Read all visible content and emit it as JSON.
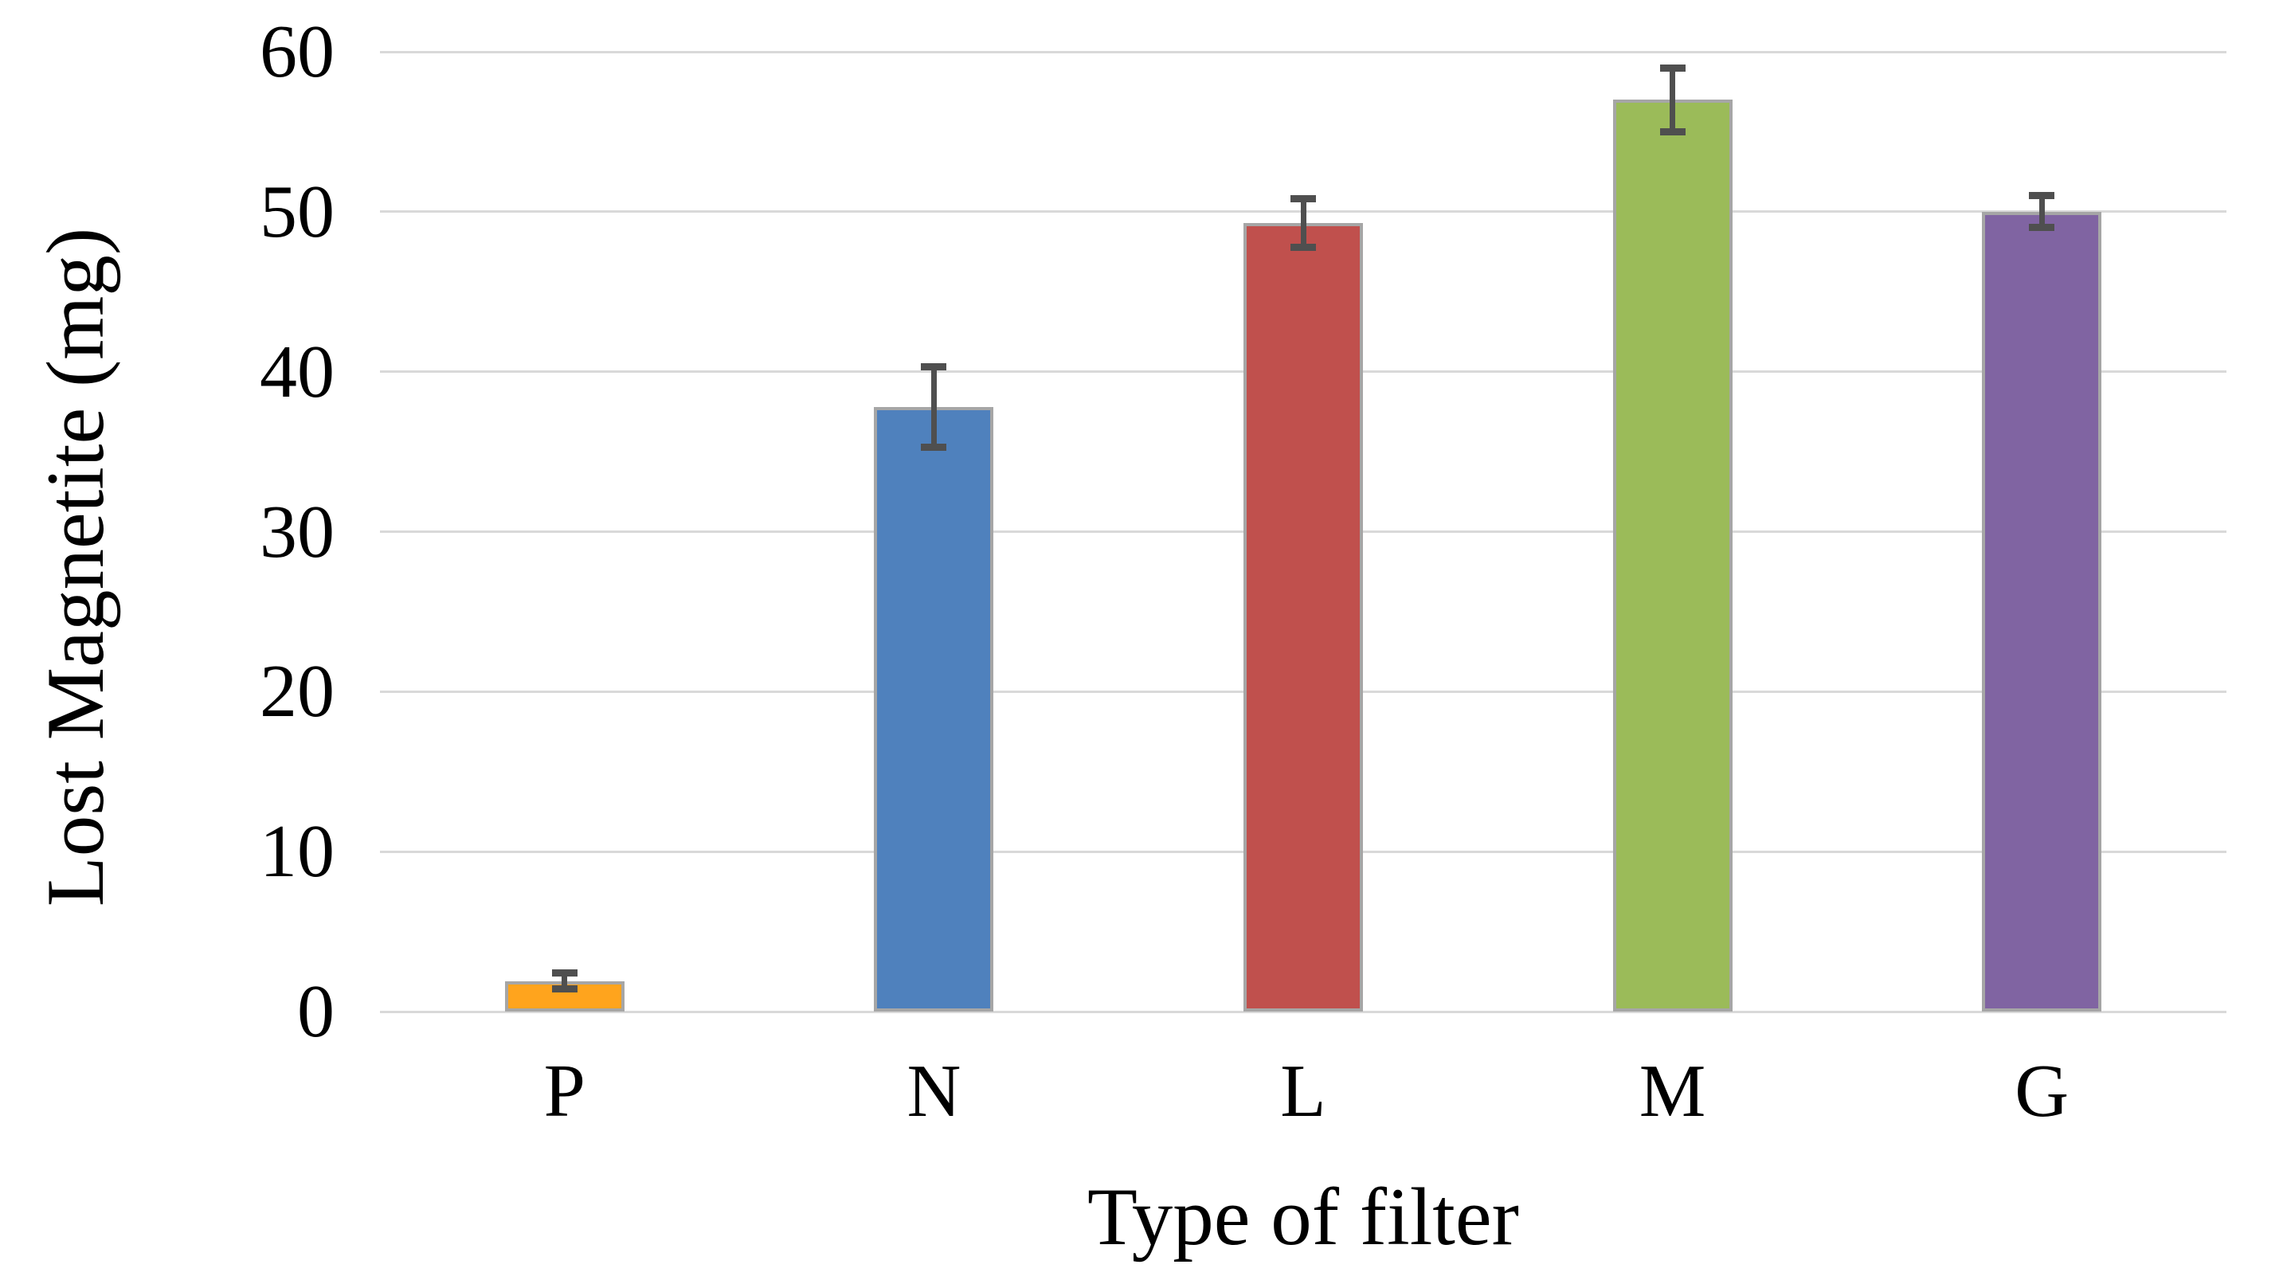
{
  "figure": {
    "background_color": "#FFFFFF",
    "y_axis": {
      "title": "Lost Magnetite (mg)",
      "tick_labels": [
        "0",
        "10",
        "20",
        "30",
        "40",
        "50",
        "60"
      ]
    },
    "x_axis": {
      "title": "Type of filter",
      "category_labels": [
        "P",
        "N",
        "L",
        "M",
        "G"
      ]
    }
  },
  "chart_data": {
    "type": "bar",
    "title": "",
    "xlabel": "Type of filter",
    "ylabel": "Lost Magnetite (mg)",
    "categories": [
      "P",
      "N",
      "L",
      "M",
      "G"
    ],
    "values": [
      1.9,
      37.8,
      49.3,
      57.0,
      50.0
    ],
    "error_bars": [
      0.5,
      2.5,
      1.5,
      2.0,
      1.0
    ],
    "ylim": [
      0,
      60
    ],
    "yticks": [
      0,
      10,
      20,
      30,
      40,
      50,
      60
    ],
    "grid": "horizontal",
    "legend": "none",
    "bar_colors": [
      "#FFA41D",
      "#4F81BD",
      "#C0504D",
      "#9BBB59",
      "#8064A2"
    ],
    "bar_border_color": "#A6A6A6",
    "gridline_color": "#D9D9D9",
    "error_bar_color": "#4F4F4F",
    "text_color": "#000000"
  }
}
